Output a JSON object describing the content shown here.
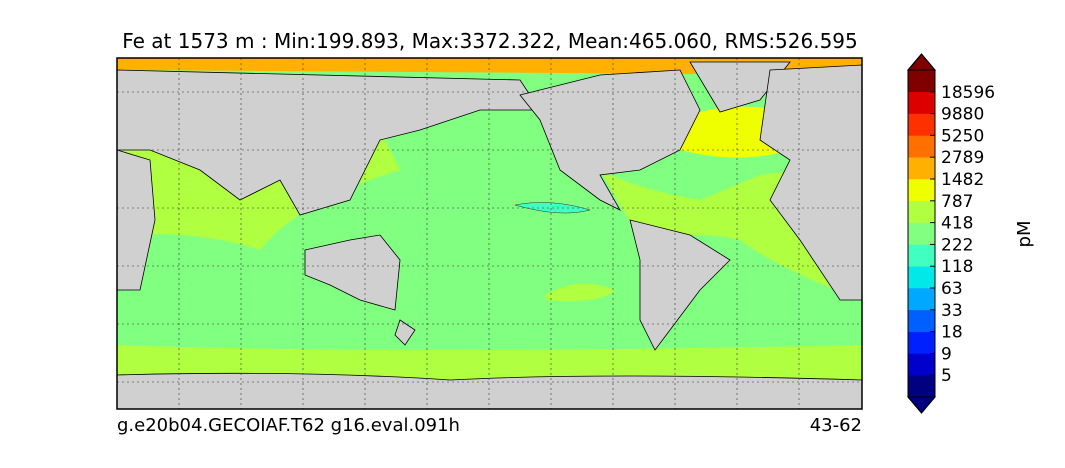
{
  "map": {
    "title": "Fe at 1573 m : Min:199.893, Max:3372.322, Mean:465.060, RMS:526.595",
    "left_caption": "g.e20b04.GECOIAF.T62 g16.eval.091h",
    "right_caption": "43-62"
  },
  "colorbar": {
    "label": "pM",
    "ticks": [
      5,
      9,
      18,
      33,
      63,
      118,
      222,
      418,
      787,
      1482,
      2789,
      5250,
      9880,
      18596
    ],
    "colors": [
      "#000080",
      "#0000cd",
      "#0020ff",
      "#0060ff",
      "#00a8ff",
      "#00e8e8",
      "#40ffc0",
      "#80ff80",
      "#b0ff40",
      "#f0ff00",
      "#ffb000",
      "#ff7000",
      "#ff3000",
      "#dd0000",
      "#800000"
    ]
  }
}
